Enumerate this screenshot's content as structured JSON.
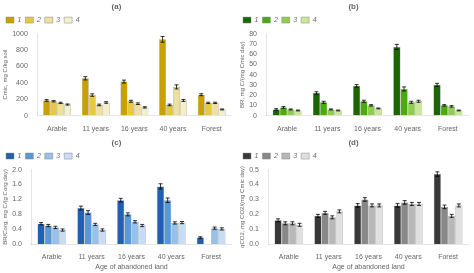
{
  "chart_data": [
    {
      "type": "bar",
      "title": "(a)",
      "categories": [
        "Arable",
        "11 years",
        "16 years",
        "40 years",
        "Forest"
      ],
      "ylabel": "Cmic, mg C/kg soil",
      "ylim": [
        0,
        1000
      ],
      "yticks": [
        0,
        200,
        400,
        600,
        800,
        1000
      ],
      "grid": false,
      "legend": "upper left",
      "series": [
        {
          "name": "1",
          "color": "#c8a000",
          "values": [
            185,
            455,
            415,
            930,
            255
          ],
          "errors": [
            10,
            20,
            18,
            35,
            12
          ]
        },
        {
          "name": "2",
          "color": "#e8c840",
          "values": [
            175,
            250,
            175,
            130,
            155
          ],
          "errors": [
            8,
            15,
            12,
            10,
            8
          ]
        },
        {
          "name": "3",
          "color": "#ede0a0",
          "values": [
            155,
            130,
            145,
            350,
            155
          ],
          "errors": [
            8,
            10,
            10,
            25,
            8
          ]
        },
        {
          "name": "4",
          "color": "#f5eec8",
          "values": [
            135,
            160,
            100,
            185,
            75
          ],
          "errors": [
            7,
            10,
            8,
            12,
            6
          ]
        }
      ]
    },
    {
      "type": "bar",
      "title": "(b)",
      "categories": [
        "Arable",
        "11 years",
        "16 years",
        "40 years",
        "Forest"
      ],
      "ylabel": "BR, mg C/(mg Cmic day)",
      "ylim": [
        0,
        80
      ],
      "yticks": [
        0,
        10,
        20,
        30,
        40,
        50,
        60,
        70,
        80
      ],
      "grid": false,
      "legend": "upper left",
      "series": [
        {
          "name": "1",
          "color": "#1a6600",
          "values": [
            6,
            22,
            29,
            67,
            30
          ],
          "errors": [
            0.8,
            1.2,
            1.2,
            2.5,
            1.5
          ]
        },
        {
          "name": "2",
          "color": "#4aaa10",
          "values": [
            8,
            13,
            14,
            26,
            10
          ],
          "errors": [
            0.8,
            1.0,
            1.0,
            2.0,
            0.7
          ]
        },
        {
          "name": "3",
          "color": "#90cc50",
          "values": [
            6,
            6,
            10,
            13,
            9
          ],
          "errors": [
            0.5,
            0.5,
            0.7,
            1.0,
            0.7
          ]
        },
        {
          "name": "4",
          "color": "#c8e898",
          "values": [
            5,
            5,
            7,
            14,
            5
          ],
          "errors": [
            0.4,
            0.4,
            0.4,
            1.0,
            0.4
          ]
        }
      ]
    },
    {
      "type": "bar",
      "title": "(c)",
      "categories": [
        "Arable",
        "11 years",
        "16 years",
        "40 years",
        "Forest"
      ],
      "xlabel": "Age of abandoned land",
      "ylabel": "BR/Corg, mg C/(g Corg day)",
      "ylim": [
        0,
        2.0
      ],
      "yticks": [
        {
          "value": 0,
          "label": "0.0"
        },
        0.4,
        0.8,
        1.2,
        1.6,
        {
          "value": 2.0,
          "label": "2.0"
        }
      ],
      "grid": false,
      "legend": "upper left",
      "series": [
        {
          "name": "1",
          "color": "#2060b0",
          "values": [
            0.55,
            0.97,
            1.18,
            1.55,
            0.18
          ],
          "errors": [
            0.03,
            0.05,
            0.05,
            0.07,
            0.02
          ]
        },
        {
          "name": "2",
          "color": "#5898d8",
          "values": [
            0.5,
            0.85,
            0.8,
            1.18,
            null
          ],
          "errors": [
            0.03,
            0.05,
            0.04,
            0.06,
            null
          ]
        },
        {
          "name": "3",
          "color": "#98c0e8",
          "values": [
            0.45,
            0.53,
            0.6,
            0.57,
            0.43
          ],
          "errors": [
            0.03,
            0.03,
            0.03,
            0.03,
            0.03
          ]
        },
        {
          "name": "4",
          "color": "#c8ddf5",
          "values": [
            0.38,
            0.38,
            0.5,
            0.58,
            0.41
          ],
          "errors": [
            0.03,
            0.03,
            0.03,
            0.03,
            0.03
          ]
        }
      ]
    },
    {
      "type": "bar",
      "title": "(d)",
      "categories": [
        "Arable",
        "11 years",
        "16 years",
        "40 years",
        "Forest"
      ],
      "xlabel": "Age of abandoned land",
      "ylabel": "qCO2, mg CO2/(mg Cmic day)",
      "ylim": [
        0,
        0.5
      ],
      "yticks": [
        {
          "value": 0,
          "label": "0.0"
        },
        0.1,
        0.2,
        0.3,
        0.4,
        0.5
      ],
      "grid": false,
      "legend": "upper left",
      "series": [
        {
          "name": "1",
          "color": "#383838",
          "values": [
            0.16,
            0.19,
            0.26,
            0.26,
            0.47
          ],
          "errors": [
            0.01,
            0.01,
            0.012,
            0.012,
            0.015
          ]
        },
        {
          "name": "2",
          "color": "#888888",
          "values": [
            0.14,
            0.21,
            0.3,
            0.28,
            0.25
          ],
          "errors": [
            0.01,
            0.01,
            0.012,
            0.012,
            0.012
          ]
        },
        {
          "name": "3",
          "color": "#b8b8b8",
          "values": [
            0.14,
            0.18,
            0.26,
            0.27,
            0.19
          ],
          "errors": [
            0.01,
            0.01,
            0.01,
            0.01,
            0.01
          ]
        },
        {
          "name": "4",
          "color": "#e0e0e0",
          "values": [
            0.13,
            0.22,
            0.26,
            0.27,
            0.26
          ],
          "errors": [
            0.01,
            0.01,
            0.01,
            0.01,
            0.01
          ]
        }
      ]
    }
  ]
}
